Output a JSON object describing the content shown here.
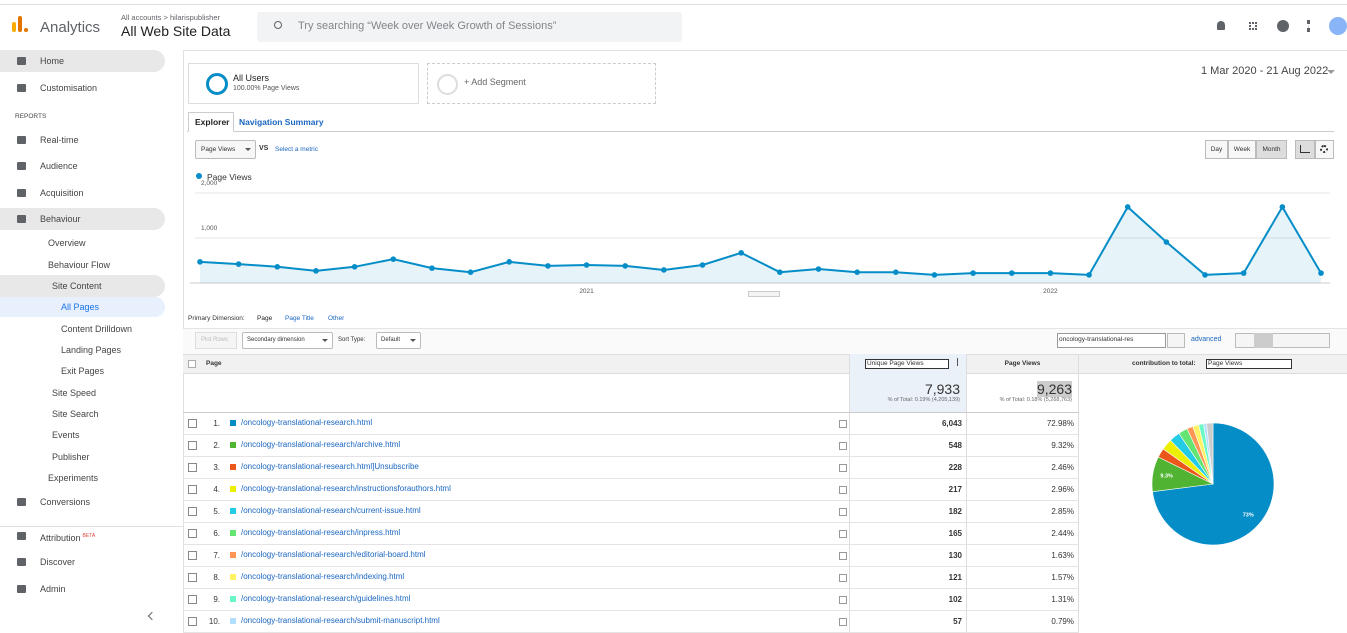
{
  "header": {
    "product": "Analytics",
    "breadcrumb": "All accounts > hilarispublisher",
    "property": "All Web Site Data",
    "search": "Try searching “Week over Week Growth of Sessions”"
  },
  "sidebar": {
    "items": [
      "Home",
      "Customisation",
      "REPORTS",
      "Real-time",
      "Audience",
      "Acquisition",
      "Behaviour",
      "Overview",
      "Behaviour Flow",
      "Site Content",
      "All Pages",
      "Content Drilldown",
      "Landing Pages",
      "Exit Pages",
      "Site Speed",
      "Site Search",
      "Events",
      "Publisher",
      "Experiments",
      "Conversions",
      "Attribution",
      "Discover",
      "Admin"
    ],
    "badge": "BETA"
  },
  "segments": {
    "name": "All Users",
    "detail": "100.00% Page Views",
    "add": "+ Add Segment",
    "date_range": "1 Mar 2020 - 21 Aug 2022"
  },
  "tabs": [
    "Explorer",
    "Navigation Summary"
  ],
  "chart_controls": {
    "metric": "Page Views",
    "vs": "VS",
    "select": "Select a metric",
    "intervals": [
      "Day",
      "Week",
      "Month"
    ]
  },
  "chart_data": [
    {
      "type": "line",
      "series": [
        {
          "name": "Page Views",
          "color": "#058dc7",
          "values": [
            470,
            420,
            360,
            270,
            360,
            530,
            330,
            240,
            470,
            380,
            400,
            380,
            290,
            400,
            670,
            240,
            310,
            240,
            240,
            180,
            220,
            220,
            220,
            180,
            1690,
            910,
            180,
            220,
            1690,
            220
          ]
        }
      ],
      "categories": [
        null,
        null,
        null,
        null,
        null,
        null,
        null,
        null,
        null,
        null,
        "2021",
        null,
        null,
        null,
        null,
        null,
        null,
        null,
        null,
        null,
        null,
        null,
        "2022",
        null,
        null,
        null,
        null,
        null,
        null,
        null
      ],
      "ylim": [
        0,
        2200
      ],
      "yticks": [
        {
          "value": 1000,
          "label": "1,000"
        },
        {
          "value": 2000,
          "label": "2,000"
        }
      ],
      "grid": true
    },
    {
      "type": "pie",
      "values": [
        72.98,
        9.32,
        2.46,
        2.96,
        2.85,
        2.44,
        1.63,
        1.57,
        1.31,
        0.79,
        1.69
      ],
      "value_labels": [
        "73%",
        "9.3%",
        null,
        null,
        null,
        null,
        null,
        null,
        null,
        null,
        null
      ],
      "colors": [
        "#058dc7",
        "#50b432",
        "#ed561b",
        "#edef00",
        "#24cbe5",
        "#64e572",
        "#ff9655",
        "#fff263",
        "#6af9c4",
        "#b2deff",
        "#cccccc"
      ]
    }
  ],
  "table": {
    "primary_label": "Primary Dimension:",
    "dimensions": [
      "Page",
      "Page Title",
      "Other"
    ],
    "plot_rows": "Plot Rows",
    "secondary": "Secondary dimension",
    "sort_label": "Sort Type:",
    "sort": "Default",
    "filter": "oncology-translational-res",
    "advanced": "advanced",
    "columns": [
      "Page",
      "Unique Page Views",
      "Page Views"
    ],
    "contribution_label": "contribution to total:",
    "contribution_metric": "Page Views",
    "totals": {
      "unique": "7,933",
      "unique_note": "% of Total: 0.19% (4,205,139)",
      "views": "9,263",
      "views_note": "% of Total: 0.18% (5,268,763)"
    },
    "rows": [
      [
        "1.",
        "/oncology-translational-research.html",
        "6,043",
        "72.98%"
      ],
      [
        "2.",
        "/oncology-translational-research/archive.html",
        "548",
        "9.32%"
      ],
      [
        "3.",
        "/oncology-translational-research.html]Unsubscribe",
        "228",
        "2.46%"
      ],
      [
        "4.",
        "/oncology-translational-research/instructionsforauthors.html",
        "217",
        "2.96%"
      ],
      [
        "5.",
        "/oncology-translational-research/current-issue.html",
        "182",
        "2.85%"
      ],
      [
        "6.",
        "/oncology-translational-research/inpress.html",
        "165",
        "2.44%"
      ],
      [
        "7.",
        "/oncology-translational-research/editorial-board.html",
        "130",
        "1.63%"
      ],
      [
        "8.",
        "/oncology-translational-research/indexing.html",
        "121",
        "1.57%"
      ],
      [
        "9.",
        "/oncology-translational-research/guidelines.html",
        "102",
        "1.31%"
      ],
      [
        "10.",
        "/oncology-translational-research/submit-manuscript.html",
        "57",
        "0.79%"
      ]
    ]
  }
}
